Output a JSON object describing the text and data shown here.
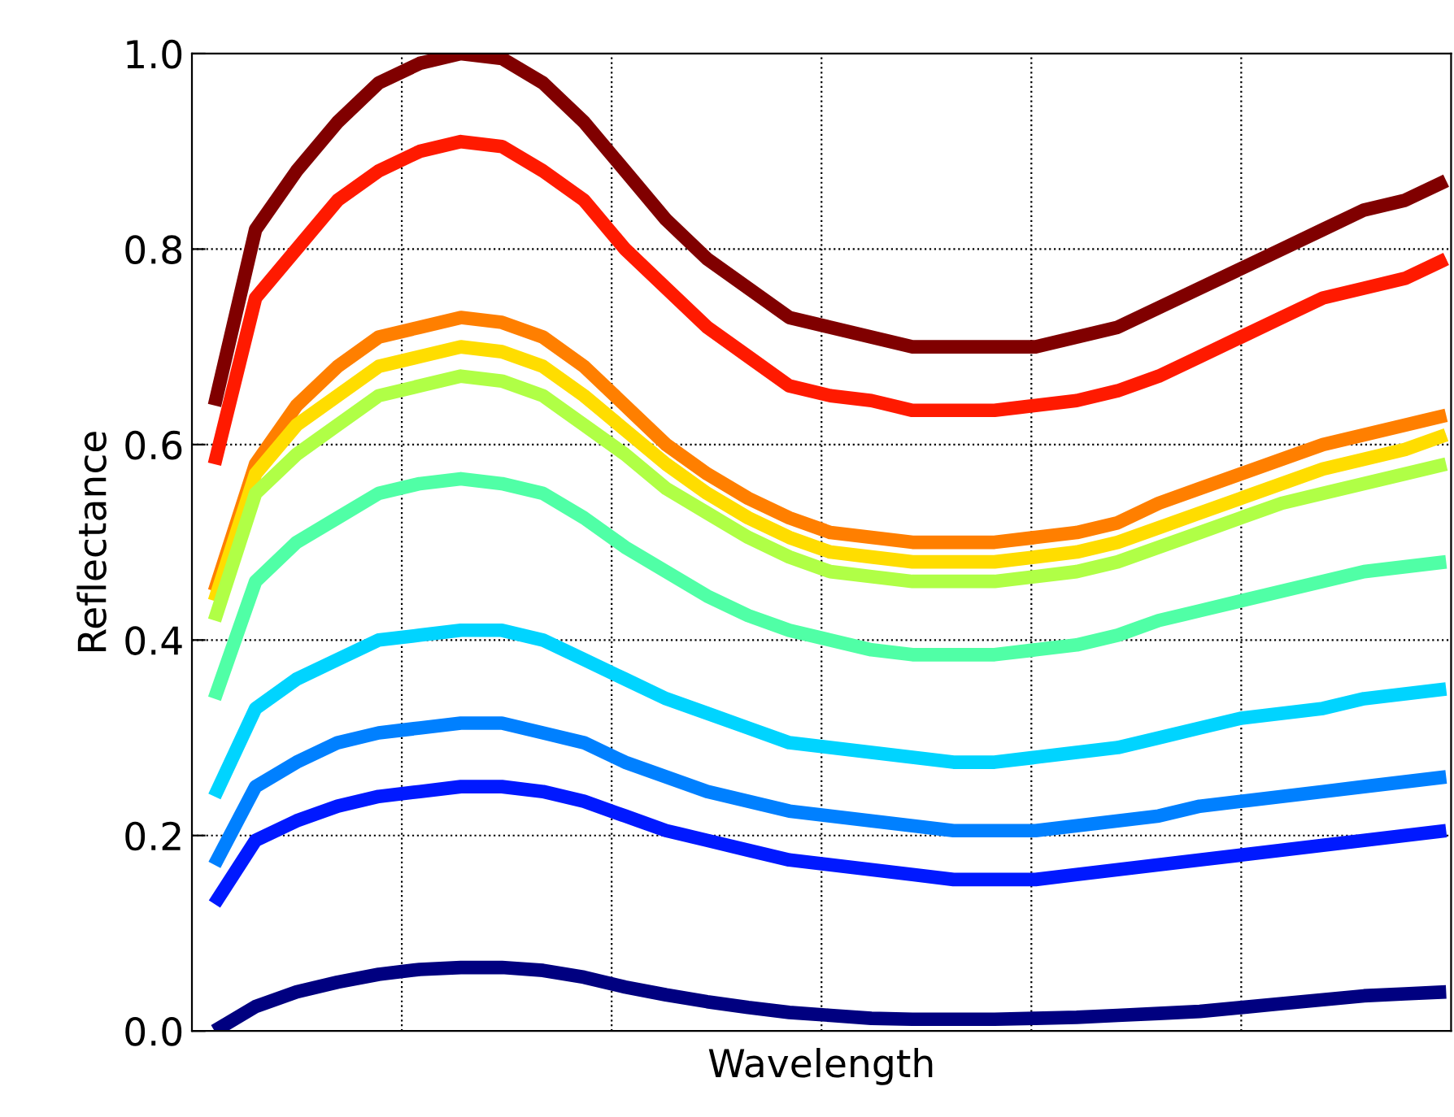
{
  "chart_data": {
    "type": "line",
    "xlabel": "Wavelength",
    "ylabel": "Reflectance",
    "categories": [
      null,
      null,
      null,
      null,
      null,
      null,
      null,
      null,
      null,
      null,
      null,
      null,
      null,
      null,
      null,
      null,
      null,
      null,
      null,
      null,
      null,
      null,
      null,
      null,
      null,
      null,
      null,
      null,
      null,
      null,
      null
    ],
    "series": [
      {
        "color": "#800000",
        "values": [
          0.64,
          0.82,
          0.88,
          0.93,
          0.97,
          0.99,
          1.0,
          0.995,
          0.97,
          0.93,
          0.88,
          0.83,
          0.79,
          0.76,
          0.73,
          0.72,
          0.71,
          0.7,
          0.7,
          0.7,
          0.7,
          0.71,
          0.72,
          0.74,
          0.76,
          0.78,
          0.8,
          0.82,
          0.84,
          0.85,
          0.87
        ]
      },
      {
        "color": "#ff1a00",
        "values": [
          0.58,
          0.75,
          0.8,
          0.85,
          0.88,
          0.9,
          0.91,
          0.905,
          0.88,
          0.85,
          0.8,
          0.76,
          0.72,
          0.69,
          0.66,
          0.65,
          0.645,
          0.635,
          0.635,
          0.635,
          0.64,
          0.645,
          0.655,
          0.67,
          0.69,
          0.71,
          0.73,
          0.75,
          0.76,
          0.77,
          0.79
        ]
      },
      {
        "color": "#ff7f00",
        "values": [
          0.45,
          0.58,
          0.64,
          0.68,
          0.71,
          0.72,
          0.73,
          0.725,
          0.71,
          0.68,
          0.64,
          0.6,
          0.57,
          0.545,
          0.525,
          0.51,
          0.505,
          0.5,
          0.5,
          0.5,
          0.505,
          0.51,
          0.52,
          0.54,
          0.555,
          0.57,
          0.585,
          0.6,
          0.61,
          0.62,
          0.63
        ]
      },
      {
        "color": "#ffdd00",
        "values": [
          0.44,
          0.57,
          0.62,
          0.65,
          0.68,
          0.69,
          0.7,
          0.695,
          0.68,
          0.65,
          0.615,
          0.58,
          0.55,
          0.525,
          0.505,
          0.49,
          0.485,
          0.48,
          0.48,
          0.48,
          0.485,
          0.49,
          0.5,
          0.515,
          0.53,
          0.545,
          0.56,
          0.575,
          0.585,
          0.595,
          0.61
        ]
      },
      {
        "color": "#b0ff46",
        "values": [
          0.42,
          0.55,
          0.59,
          0.62,
          0.65,
          0.66,
          0.67,
          0.665,
          0.65,
          0.62,
          0.59,
          0.555,
          0.53,
          0.505,
          0.485,
          0.47,
          0.465,
          0.46,
          0.46,
          0.46,
          0.465,
          0.47,
          0.48,
          0.495,
          0.51,
          0.525,
          0.54,
          0.55,
          0.56,
          0.57,
          0.58
        ]
      },
      {
        "color": "#50ffa6",
        "values": [
          0.34,
          0.46,
          0.5,
          0.525,
          0.55,
          0.56,
          0.565,
          0.56,
          0.55,
          0.525,
          0.495,
          0.47,
          0.445,
          0.425,
          0.41,
          0.4,
          0.39,
          0.385,
          0.385,
          0.385,
          0.39,
          0.395,
          0.405,
          0.42,
          0.43,
          0.44,
          0.45,
          0.46,
          0.47,
          0.475,
          0.48
        ]
      },
      {
        "color": "#00d4ff",
        "values": [
          0.24,
          0.33,
          0.36,
          0.38,
          0.4,
          0.405,
          0.41,
          0.41,
          0.4,
          0.38,
          0.36,
          0.34,
          0.325,
          0.31,
          0.295,
          0.29,
          0.285,
          0.28,
          0.275,
          0.275,
          0.28,
          0.285,
          0.29,
          0.3,
          0.31,
          0.32,
          0.325,
          0.33,
          0.34,
          0.345,
          0.35
        ]
      },
      {
        "color": "#0080ff",
        "values": [
          0.17,
          0.25,
          0.275,
          0.295,
          0.305,
          0.31,
          0.315,
          0.315,
          0.305,
          0.295,
          0.275,
          0.26,
          0.245,
          0.235,
          0.225,
          0.22,
          0.215,
          0.21,
          0.205,
          0.205,
          0.205,
          0.21,
          0.215,
          0.22,
          0.23,
          0.235,
          0.24,
          0.245,
          0.25,
          0.255,
          0.26
        ]
      },
      {
        "color": "#0019ff",
        "values": [
          0.13,
          0.195,
          0.215,
          0.23,
          0.24,
          0.245,
          0.25,
          0.25,
          0.245,
          0.235,
          0.22,
          0.205,
          0.195,
          0.185,
          0.175,
          0.17,
          0.165,
          0.16,
          0.155,
          0.155,
          0.155,
          0.16,
          0.165,
          0.17,
          0.175,
          0.18,
          0.185,
          0.19,
          0.195,
          0.2,
          0.205
        ]
      },
      {
        "color": "#000080",
        "values": [
          0.0,
          0.025,
          0.04,
          0.05,
          0.058,
          0.063,
          0.065,
          0.065,
          0.062,
          0.055,
          0.045,
          0.037,
          0.03,
          0.024,
          0.019,
          0.016,
          0.013,
          0.012,
          0.012,
          0.012,
          0.013,
          0.014,
          0.016,
          0.018,
          0.02,
          0.024,
          0.028,
          0.032,
          0.036,
          0.038,
          0.04
        ]
      }
    ],
    "ylim": [
      0,
      1
    ],
    "yticks": [
      {
        "value": 0,
        "label": "0.0"
      },
      {
        "value": 0.2,
        "label": "0.2"
      },
      {
        "value": 0.4,
        "label": "0.4"
      },
      {
        "value": 0.6,
        "label": "0.6"
      },
      {
        "value": 0.8,
        "label": "0.8"
      },
      {
        "value": 1.0,
        "label": "1.0"
      }
    ],
    "grid": true,
    "line_style": "solid",
    "marker": "none"
  }
}
